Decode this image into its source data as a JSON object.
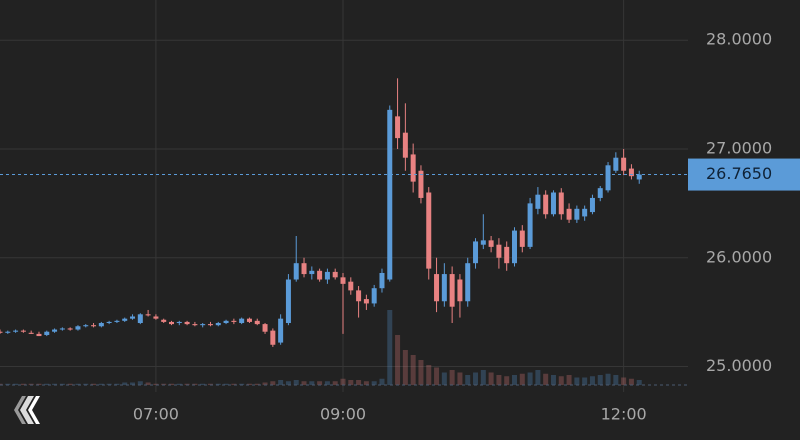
{
  "chart_data": {
    "type": "candlestick",
    "x": [
      "05:20",
      "05:25",
      "05:30",
      "05:35",
      "05:40",
      "05:45",
      "05:50",
      "05:55",
      "06:00",
      "06:05",
      "06:10",
      "06:15",
      "06:20",
      "06:25",
      "06:30",
      "06:35",
      "06:40",
      "06:45",
      "06:50",
      "06:55",
      "07:00",
      "07:05",
      "07:10",
      "07:15",
      "07:20",
      "07:25",
      "07:30",
      "07:35",
      "07:40",
      "07:45",
      "07:50",
      "07:55",
      "08:00",
      "08:05",
      "08:10",
      "08:15",
      "08:20",
      "08:25",
      "08:30",
      "08:35",
      "08:40",
      "08:45",
      "08:50",
      "08:55",
      "09:00",
      "09:05",
      "09:10",
      "09:15",
      "09:20",
      "09:25",
      "09:30",
      "09:35",
      "09:40",
      "09:45",
      "09:50",
      "09:55",
      "10:00",
      "10:05",
      "10:10",
      "10:15",
      "10:20",
      "10:25",
      "10:30",
      "10:35",
      "10:40",
      "10:45",
      "10:50",
      "10:55",
      "11:00",
      "11:05",
      "11:10",
      "11:15",
      "11:20",
      "11:25",
      "11:30",
      "11:35",
      "11:40",
      "11:45",
      "11:50",
      "11:55",
      "12:00",
      "12:05",
      "12:10"
    ],
    "open": [
      25.32,
      25.31,
      25.32,
      25.33,
      25.31,
      25.3,
      25.29,
      25.32,
      25.34,
      25.35,
      25.34,
      25.37,
      25.38,
      25.37,
      25.4,
      25.41,
      25.42,
      25.44,
      25.4,
      25.48,
      25.46,
      25.43,
      25.41,
      25.4,
      25.41,
      25.39,
      25.38,
      25.39,
      25.38,
      25.4,
      25.42,
      25.4,
      25.44,
      25.42,
      25.39,
      25.33,
      25.22,
      25.4,
      25.8,
      25.95,
      25.85,
      25.88,
      25.8,
      25.87,
      25.82,
      25.78,
      25.7,
      25.62,
      25.58,
      25.72,
      25.8,
      27.3,
      27.15,
      26.95,
      26.8,
      26.6,
      25.85,
      25.6,
      25.85,
      25.8,
      25.6,
      25.95,
      26.12,
      26.16,
      26.12,
      26.1,
      25.95,
      26.25,
      26.1,
      26.45,
      26.58,
      26.4,
      26.6,
      26.45,
      26.35,
      26.38,
      26.42,
      26.55,
      26.62,
      26.8,
      26.92,
      26.82,
      26.72
    ],
    "high": [
      25.34,
      25.33,
      25.34,
      25.34,
      25.33,
      25.32,
      25.33,
      25.35,
      25.36,
      25.36,
      25.38,
      25.39,
      25.4,
      25.41,
      25.42,
      25.43,
      25.45,
      25.48,
      25.49,
      25.52,
      25.48,
      25.44,
      25.42,
      25.42,
      25.42,
      25.41,
      25.4,
      25.41,
      25.41,
      25.43,
      25.44,
      25.45,
      25.45,
      25.44,
      25.4,
      25.35,
      25.48,
      25.85,
      26.2,
      26.0,
      25.92,
      25.9,
      25.9,
      25.9,
      25.86,
      25.82,
      25.74,
      25.66,
      25.75,
      25.9,
      27.4,
      27.65,
      27.42,
      27.05,
      26.85,
      26.65,
      26.0,
      25.95,
      25.92,
      25.85,
      26.0,
      26.18,
      26.4,
      26.2,
      26.18,
      26.15,
      26.28,
      26.3,
      26.55,
      26.65,
      26.62,
      26.62,
      26.64,
      26.5,
      26.48,
      26.48,
      26.58,
      26.66,
      26.88,
      26.97,
      27.0,
      26.86,
      26.8
    ],
    "low": [
      25.3,
      25.3,
      25.31,
      25.31,
      25.3,
      25.28,
      25.28,
      25.31,
      25.33,
      25.33,
      25.33,
      25.36,
      25.36,
      25.36,
      25.39,
      25.4,
      25.41,
      25.43,
      25.39,
      25.46,
      25.43,
      25.4,
      25.38,
      25.38,
      25.38,
      25.37,
      25.36,
      25.37,
      25.37,
      25.39,
      25.39,
      25.39,
      25.4,
      25.38,
      25.3,
      25.18,
      25.2,
      25.38,
      25.78,
      25.82,
      25.8,
      25.78,
      25.76,
      25.8,
      25.3,
      25.66,
      25.45,
      25.52,
      25.55,
      25.68,
      25.78,
      27.0,
      26.8,
      26.6,
      26.5,
      25.8,
      25.5,
      25.55,
      25.4,
      25.45,
      25.55,
      25.9,
      26.08,
      26.05,
      25.9,
      25.88,
      25.92,
      26.05,
      26.08,
      26.4,
      26.36,
      26.38,
      26.35,
      26.32,
      26.32,
      26.34,
      26.4,
      26.52,
      26.6,
      26.78,
      26.76,
      26.72,
      26.68
    ],
    "close": [
      25.31,
      25.32,
      25.33,
      25.32,
      25.3,
      25.28,
      25.32,
      25.34,
      25.35,
      25.34,
      25.37,
      25.38,
      25.37,
      25.4,
      25.41,
      25.42,
      25.44,
      25.46,
      25.48,
      25.47,
      25.44,
      25.41,
      25.39,
      25.41,
      25.39,
      25.38,
      25.39,
      25.38,
      25.4,
      25.42,
      25.41,
      25.44,
      25.41,
      25.39,
      25.32,
      25.2,
      25.44,
      25.8,
      25.95,
      25.85,
      25.88,
      25.8,
      25.87,
      25.82,
      25.76,
      25.7,
      25.6,
      25.58,
      25.72,
      25.86,
      27.36,
      27.1,
      26.92,
      26.7,
      26.55,
      25.9,
      25.6,
      25.85,
      25.55,
      25.6,
      25.95,
      26.15,
      26.16,
      26.1,
      26.0,
      25.95,
      26.25,
      26.1,
      26.5,
      26.58,
      26.4,
      26.6,
      26.4,
      26.35,
      26.45,
      26.45,
      26.55,
      26.64,
      26.85,
      26.92,
      26.8,
      26.75,
      26.765
    ],
    "volume": [
      1,
      1,
      1,
      1,
      1,
      1,
      1,
      1,
      1,
      1,
      1,
      1,
      1,
      1,
      1,
      1,
      2,
      2,
      3,
      2,
      1,
      1,
      1,
      1,
      1,
      1,
      1,
      1,
      1,
      1,
      1,
      1,
      1,
      1,
      2,
      3,
      4,
      3,
      4,
      3,
      3,
      3,
      3,
      3,
      5,
      4,
      4,
      3,
      3,
      5,
      60,
      40,
      28,
      24,
      20,
      16,
      14,
      10,
      12,
      10,
      8,
      10,
      12,
      10,
      8,
      7,
      8,
      9,
      10,
      12,
      9,
      8,
      7,
      8,
      6,
      6,
      7,
      8,
      9,
      8,
      6,
      5,
      4
    ],
    "up_color": "#5b9bd8",
    "down_color": "#e88282",
    "xlim": [
      "05:20",
      "12:40"
    ],
    "xticks": [
      "07:00",
      "09:00",
      "12:00"
    ],
    "ylim": [
      24.83,
      28.37
    ],
    "yticks": [
      {
        "value": 25,
        "label": "25.0000"
      },
      {
        "value": 26,
        "label": "26.0000"
      },
      {
        "value": 27,
        "label": "27.0000"
      },
      {
        "value": 28,
        "label": "28.0000"
      }
    ],
    "last_price": {
      "value": 26.765,
      "label": "26.7650"
    },
    "grid": true
  }
}
